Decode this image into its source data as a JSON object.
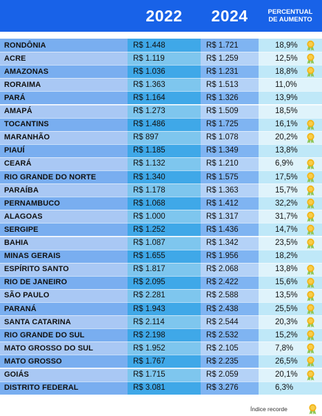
{
  "chart_data": {
    "type": "table",
    "columns": [
      "2022",
      "2024",
      "PERCENTUAL DE AUMENTO"
    ],
    "rows": [
      {
        "state": "RONDÔNIA",
        "v2022": "R$ 1.448",
        "v2024": "R$ 1.721",
        "pct": "18,9%",
        "record": true
      },
      {
        "state": "ACRE",
        "v2022": "R$ 1.119",
        "v2024": "R$ 1.259",
        "pct": "12,5%",
        "record": true
      },
      {
        "state": "AMAZONAS",
        "v2022": "R$ 1.036",
        "v2024": "R$ 1.231",
        "pct": "18,8%",
        "record": true
      },
      {
        "state": "RORAIMA",
        "v2022": "R$ 1.363",
        "v2024": "R$ 1.513",
        "pct": "11,0%",
        "record": false
      },
      {
        "state": "PARÁ",
        "v2022": "R$ 1.164",
        "v2024": "R$ 1.326",
        "pct": "13,9%",
        "record": false
      },
      {
        "state": "AMAPÁ",
        "v2022": "R$ 1.273",
        "v2024": "R$ 1.509",
        "pct": "18,5%",
        "record": false
      },
      {
        "state": "TOCANTINS",
        "v2022": "R$ 1.486",
        "v2024": "R$ 1.725",
        "pct": "16,1%",
        "record": true
      },
      {
        "state": "MARANHÃO",
        "v2022": "R$ 897",
        "v2024": "R$ 1.078",
        "pct": "20,2%",
        "record": true
      },
      {
        "state": "PIAUÍ",
        "v2022": "R$ 1.185",
        "v2024": "R$ 1.349",
        "pct": "13,8%",
        "record": false
      },
      {
        "state": "CEARÁ",
        "v2022": "R$ 1.132",
        "v2024": "R$ 1.210",
        "pct": "6,9%",
        "record": true
      },
      {
        "state": "RIO GRANDE DO NORTE",
        "v2022": "R$ 1.340",
        "v2024": "R$ 1.575",
        "pct": "17,5%",
        "record": true
      },
      {
        "state": "PARAÍBA",
        "v2022": "R$ 1.178",
        "v2024": "R$ 1.363",
        "pct": "15,7%",
        "record": true
      },
      {
        "state": "PERNAMBUCO",
        "v2022": "R$ 1.068",
        "v2024": "R$ 1.412",
        "pct": "32,2%",
        "record": true
      },
      {
        "state": "ALAGOAS",
        "v2022": "R$ 1.000",
        "v2024": "R$ 1.317",
        "pct": "31,7%",
        "record": true
      },
      {
        "state": "SERGIPE",
        "v2022": "R$ 1.252",
        "v2024": "R$ 1.436",
        "pct": "14,7%",
        "record": true
      },
      {
        "state": "BAHIA",
        "v2022": "R$ 1.087",
        "v2024": "R$ 1.342",
        "pct": "23,5%",
        "record": true
      },
      {
        "state": "MINAS GERAIS",
        "v2022": "R$ 1.655",
        "v2024": "R$ 1.956",
        "pct": "18,2%",
        "record": false
      },
      {
        "state": "ESPÍRITO SANTO",
        "v2022": "R$ 1.817",
        "v2024": "R$ 2.068",
        "pct": "13,8%",
        "record": true
      },
      {
        "state": "RIO DE JANEIRO",
        "v2022": "R$ 2.095",
        "v2024": "R$ 2.422",
        "pct": "15,6%",
        "record": true
      },
      {
        "state": "SÃO PAULO",
        "v2022": "R$ 2.281",
        "v2024": "R$ 2.588",
        "pct": "13,5%",
        "record": true
      },
      {
        "state": "PARANÁ",
        "v2022": "R$ 1.943",
        "v2024": "R$ 2.438",
        "pct": "25,5%",
        "record": true
      },
      {
        "state": "SANTA CATARINA",
        "v2022": "R$ 2.114",
        "v2024": "R$ 2.544",
        "pct": "20,3%",
        "record": true
      },
      {
        "state": "RIO GRANDE DO SUL",
        "v2022": "R$ 2.198",
        "v2024": "R$ 2.532",
        "pct": "15,2%",
        "record": true
      },
      {
        "state": "MATO GROSSO DO SUL",
        "v2022": "R$ 1.952",
        "v2024": "R$ 2.105",
        "pct": "7,8%",
        "record": true
      },
      {
        "state": "MATO GROSSO",
        "v2022": "R$ 1.767",
        "v2024": "R$ 2.235",
        "pct": "26,5%",
        "record": true
      },
      {
        "state": "GOIÁS",
        "v2022": "R$ 1.715",
        "v2024": "R$ 2.059",
        "pct": "20,1%",
        "record": true
      },
      {
        "state": "DISTRITO FEDERAL",
        "v2022": "R$ 3.081",
        "v2024": "R$ 3.276",
        "pct": "6,3%",
        "record": false
      }
    ]
  },
  "header": {
    "year_a": "2022",
    "year_b": "2024",
    "pct_line1": "PERCENTUAL",
    "pct_line2": "DE AUMENTO"
  },
  "legend": {
    "label": "Índice recorde",
    "icon": "medal-icon"
  },
  "colors": {
    "header_blue": "#1862e8",
    "state_a": "#79aef0",
    "state_b": "#a9c8f4",
    "v22_a": "#3fa8e8",
    "v22_b": "#7ec6ee",
    "v24_a": "#7fb4f2",
    "v24_b": "#b4d2f7",
    "pct_a": "#bfe8f8",
    "pct_b": "#dff3fb",
    "medal_gold": "#f2b418",
    "medal_ribbon": "#8fc657"
  }
}
